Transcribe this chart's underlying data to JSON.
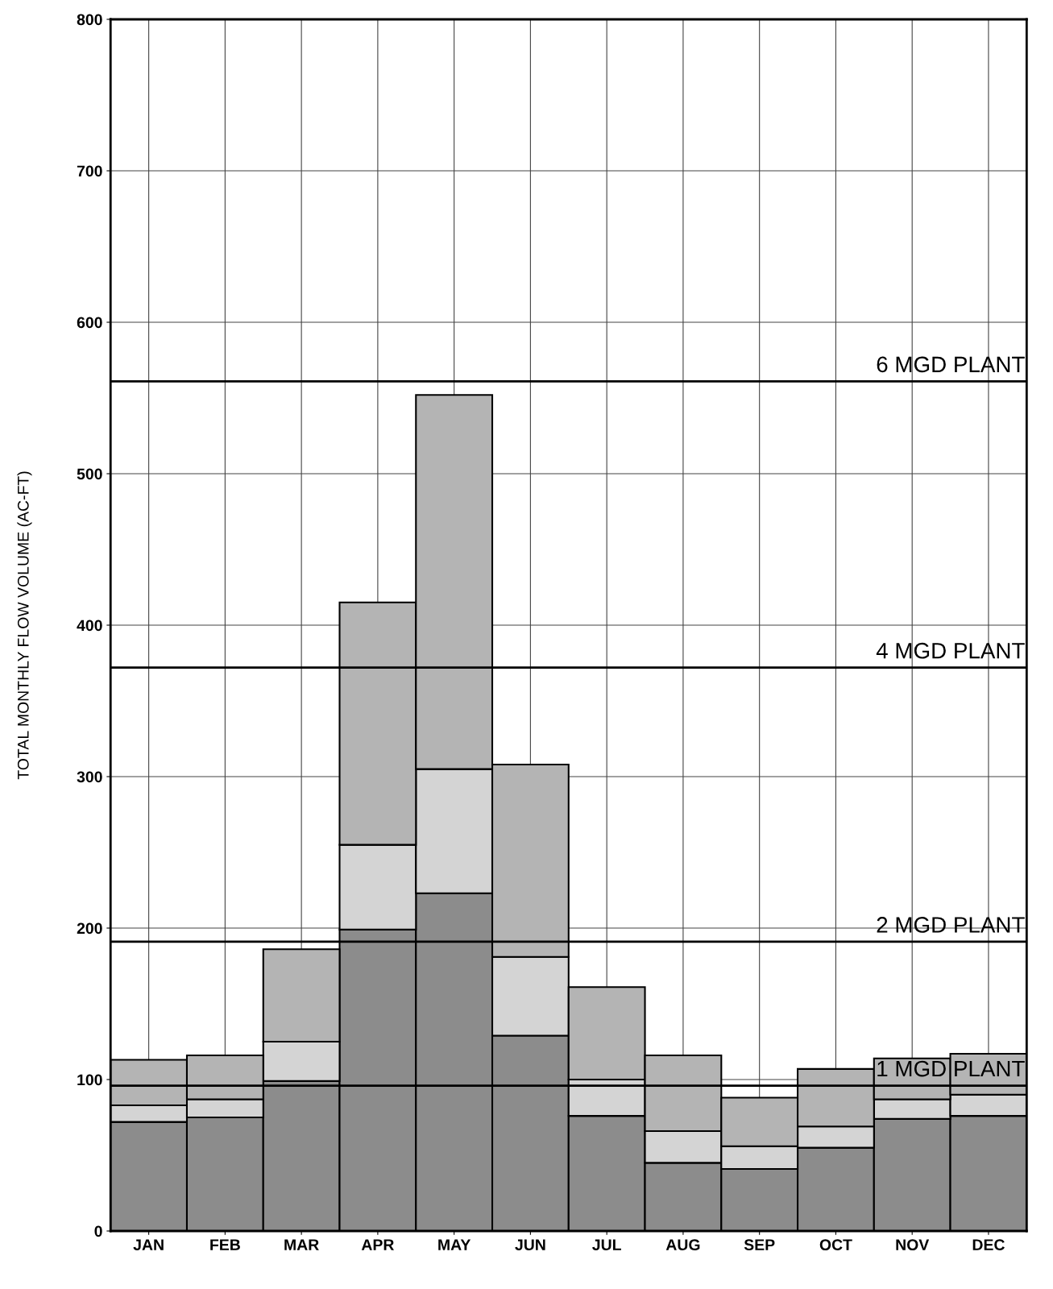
{
  "chart_data": {
    "type": "bar",
    "stacked": true,
    "ylabel": "TOTAL MONTHLY FLOW VOLUME (AC-FT)",
    "categories": [
      "JAN",
      "FEB",
      "MAR",
      "APR",
      "MAY",
      "JUN",
      "JUL",
      "AUG",
      "SEP",
      "OCT",
      "NOV",
      "DEC"
    ],
    "series": [
      {
        "color": "#8c8c8c",
        "values": [
          72,
          75,
          99,
          199,
          223,
          129,
          76,
          45,
          41,
          55,
          74,
          76
        ]
      },
      {
        "color": "#d4d4d4",
        "values": [
          11,
          12,
          26,
          56,
          82,
          52,
          24,
          21,
          15,
          14,
          13,
          14
        ]
      },
      {
        "color": "#b4b4b4",
        "values": [
          30,
          29,
          61,
          160,
          247,
          127,
          61,
          50,
          32,
          38,
          27,
          27
        ]
      }
    ],
    "ylim": [
      0,
      800
    ],
    "yticks": [
      0,
      100,
      200,
      300,
      400,
      500,
      600,
      700,
      800
    ],
    "grid": true,
    "legend": false,
    "ref_lines": [
      {
        "axis": "y",
        "value": 96,
        "label": "1 MGD PLANT",
        "color": "#000000"
      },
      {
        "axis": "y",
        "value": 191,
        "label": "2 MGD PLANT",
        "color": "#000000"
      },
      {
        "axis": "y",
        "value": 372,
        "label": "4 MGD PLANT",
        "color": "#000000"
      },
      {
        "axis": "y",
        "value": 561,
        "label": "6 MGD PLANT",
        "color": "#000000"
      }
    ]
  }
}
